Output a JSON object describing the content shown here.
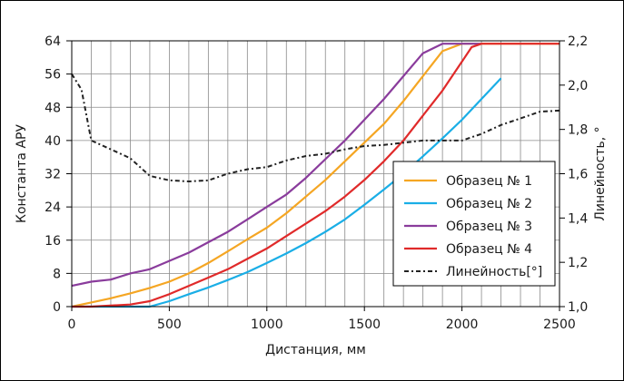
{
  "chart_data": {
    "type": "line",
    "xlabel": "Дистанция, мм",
    "ylabel": "Константа АРУ",
    "y2label": "Линейность, °",
    "xlim": [
      0,
      2500
    ],
    "ylim": [
      0,
      64
    ],
    "y2lim": [
      1.0,
      2.2
    ],
    "grid": true,
    "legend_position": "lower-right",
    "x_ticks": [
      "0",
      "500",
      "1000",
      "1500",
      "2000",
      "2500"
    ],
    "y_ticks": [
      "0",
      "8",
      "16",
      "24",
      "32",
      "40",
      "48",
      "56",
      "64"
    ],
    "y2_ticks": [
      "1,0",
      "1,2",
      "1,4",
      "1,6",
      "1,8",
      "2,0",
      "2,2"
    ],
    "series": [
      {
        "name": "Образец № 1",
        "color": "#f5a623",
        "axis": "left",
        "points": [
          [
            0,
            0
          ],
          [
            100,
            1
          ],
          [
            200,
            2
          ],
          [
            300,
            3.2
          ],
          [
            400,
            4.5
          ],
          [
            500,
            6
          ],
          [
            600,
            8
          ],
          [
            700,
            10.5
          ],
          [
            800,
            13.3
          ],
          [
            900,
            16.2
          ],
          [
            1000,
            19
          ],
          [
            1100,
            22.5
          ],
          [
            1200,
            26.5
          ],
          [
            1300,
            30.5
          ],
          [
            1400,
            35
          ],
          [
            1500,
            39.5
          ],
          [
            1600,
            44
          ],
          [
            1700,
            49.5
          ],
          [
            1800,
            55.5
          ],
          [
            1900,
            61.5
          ],
          [
            2000,
            63.3
          ],
          [
            2100,
            63.3
          ],
          [
            2200,
            63.3
          ],
          [
            2300,
            63.3
          ],
          [
            2400,
            63.3
          ],
          [
            2500,
            63.3
          ]
        ]
      },
      {
        "name": "Образец № 2",
        "color": "#1aaee6",
        "axis": "left",
        "points": [
          [
            0,
            0
          ],
          [
            400,
            0
          ],
          [
            500,
            1.3
          ],
          [
            600,
            3
          ],
          [
            700,
            4.6
          ],
          [
            800,
            6.4
          ],
          [
            900,
            8.3
          ],
          [
            1000,
            10.5
          ],
          [
            1100,
            12.8
          ],
          [
            1200,
            15.3
          ],
          [
            1300,
            18
          ],
          [
            1400,
            21
          ],
          [
            1500,
            24.5
          ],
          [
            1600,
            28.2
          ],
          [
            1700,
            32
          ],
          [
            1800,
            36.2
          ],
          [
            1900,
            40.5
          ],
          [
            2000,
            45
          ],
          [
            2100,
            50
          ],
          [
            2200,
            55
          ]
        ]
      },
      {
        "name": "Образец № 3",
        "color": "#8a3c9c",
        "axis": "left",
        "points": [
          [
            0,
            5
          ],
          [
            100,
            6
          ],
          [
            200,
            6.5
          ],
          [
            300,
            8
          ],
          [
            400,
            9
          ],
          [
            500,
            11
          ],
          [
            600,
            13
          ],
          [
            700,
            15.5
          ],
          [
            800,
            18
          ],
          [
            900,
            21
          ],
          [
            1000,
            24
          ],
          [
            1100,
            27
          ],
          [
            1200,
            31
          ],
          [
            1300,
            35.5
          ],
          [
            1400,
            40
          ],
          [
            1500,
            45
          ],
          [
            1600,
            50
          ],
          [
            1700,
            55.5
          ],
          [
            1800,
            61
          ],
          [
            1900,
            63.3
          ],
          [
            2000,
            63.3
          ],
          [
            2100,
            63.3
          ]
        ]
      },
      {
        "name": "Образец № 4",
        "color": "#e02a2a",
        "axis": "left",
        "points": [
          [
            0,
            0
          ],
          [
            100,
            0
          ],
          [
            300,
            0.5
          ],
          [
            400,
            1.3
          ],
          [
            500,
            3
          ],
          [
            600,
            5
          ],
          [
            700,
            7
          ],
          [
            800,
            9
          ],
          [
            900,
            11.5
          ],
          [
            1000,
            14
          ],
          [
            1100,
            17
          ],
          [
            1200,
            20
          ],
          [
            1300,
            23
          ],
          [
            1400,
            26.5
          ],
          [
            1500,
            30.5
          ],
          [
            1600,
            35
          ],
          [
            1700,
            40
          ],
          [
            1800,
            46
          ],
          [
            1900,
            52
          ],
          [
            2000,
            59
          ],
          [
            2050,
            62.5
          ],
          [
            2100,
            63.3
          ],
          [
            2200,
            63.3
          ],
          [
            2300,
            63.3
          ],
          [
            2400,
            63.3
          ],
          [
            2500,
            63.3
          ]
        ]
      },
      {
        "name": "Линейность[°]",
        "color": "#222222",
        "dashed": true,
        "axis": "right",
        "points": [
          [
            0,
            2.05
          ],
          [
            50,
            1.98
          ],
          [
            100,
            1.75
          ],
          [
            200,
            1.71
          ],
          [
            300,
            1.67
          ],
          [
            400,
            1.59
          ],
          [
            500,
            1.57
          ],
          [
            600,
            1.565
          ],
          [
            700,
            1.57
          ],
          [
            800,
            1.6
          ],
          [
            900,
            1.62
          ],
          [
            1000,
            1.63
          ],
          [
            1100,
            1.66
          ],
          [
            1200,
            1.68
          ],
          [
            1300,
            1.69
          ],
          [
            1400,
            1.71
          ],
          [
            1500,
            1.725
          ],
          [
            1600,
            1.73
          ],
          [
            1700,
            1.74
          ],
          [
            1800,
            1.75
          ],
          [
            1900,
            1.75
          ],
          [
            2000,
            1.75
          ],
          [
            2100,
            1.78
          ],
          [
            2200,
            1.82
          ],
          [
            2300,
            1.85
          ],
          [
            2400,
            1.88
          ],
          [
            2500,
            1.885
          ]
        ]
      }
    ]
  }
}
